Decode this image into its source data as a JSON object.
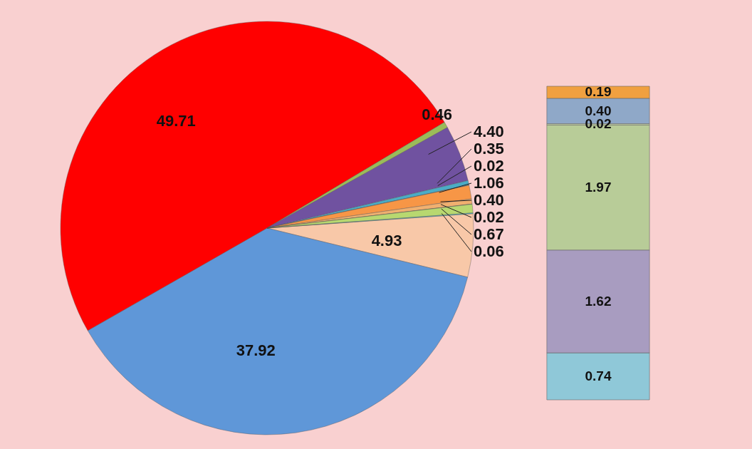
{
  "chart_data": [
    {
      "type": "pie",
      "categories": [
        null,
        null,
        null,
        null,
        null,
        null,
        null,
        null,
        null,
        null,
        null,
        null
      ],
      "values": [
        4.93,
        37.92,
        49.71,
        0.46,
        4.4,
        0.35,
        0.02,
        1.06,
        0.4,
        0.02,
        0.67,
        0.06
      ],
      "colors": [
        "#f8c8a8",
        "#5f97d8",
        "#ff0000",
        "#9bbb59",
        "#7052a0",
        "#4bacc6",
        "#4f81bd",
        "#f79646",
        "#f0b070",
        "#9bbb59",
        "#b8d870",
        "#4bc0c8"
      ],
      "data_labels": true,
      "value_labels": [
        "4.93",
        "37.92",
        "49.71",
        "0.46",
        "4.40",
        "0.35",
        "0.02",
        "1.06",
        "0.40",
        "0.02",
        "0.67",
        "0.06"
      ]
    },
    {
      "type": "bar",
      "stacked": true,
      "categories": [
        null
      ],
      "data_labels": true,
      "series": [
        {
          "color": "#8fc8d8",
          "values": [
            0.74
          ],
          "value_labels": [
            "0.74"
          ]
        },
        {
          "color": "#a89cc0",
          "values": [
            1.62
          ],
          "value_labels": [
            "1.62"
          ]
        },
        {
          "color": "#b8cc98",
          "values": [
            1.97
          ],
          "value_labels": [
            "1.97"
          ]
        },
        {
          "color": "#c8d8a8",
          "values": [
            0.02
          ],
          "value_labels": [
            "0.02"
          ]
        },
        {
          "color": "#8fa8c8",
          "values": [
            0.4
          ],
          "value_labels": [
            "0.40"
          ]
        },
        {
          "color": "#f0a040",
          "values": [
            0.19
          ],
          "value_labels": [
            "0.19"
          ]
        }
      ]
    }
  ]
}
